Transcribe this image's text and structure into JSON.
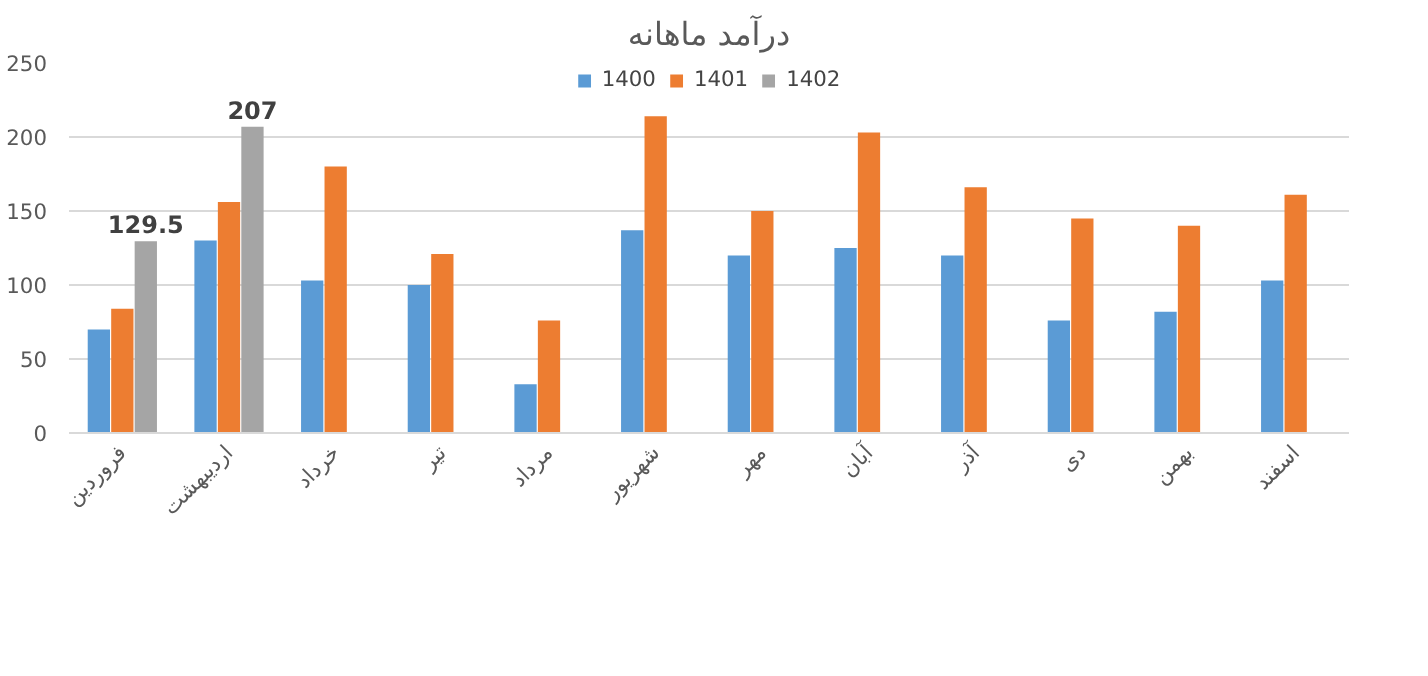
{
  "chart_data": {
    "type": "bar",
    "title": "درآمد ماهانه",
    "categories": [
      "فروردین",
      "اردیبهشت",
      "خرداد",
      "تیر",
      "مرداد",
      "شهریور",
      "مهر",
      "آبان",
      "آذر",
      "دی",
      "بهمن",
      "اسفند"
    ],
    "series": [
      {
        "name": "1400",
        "color": "#5b9bd5",
        "values": [
          70,
          130,
          103,
          100,
          33,
          137,
          120,
          125,
          120,
          76,
          82,
          103
        ]
      },
      {
        "name": "1401",
        "color": "#ed7d31",
        "values": [
          84,
          156,
          180,
          121,
          76,
          214,
          150,
          203,
          166,
          145,
          140,
          161
        ]
      },
      {
        "name": "1402",
        "color": "#a5a5a5",
        "values": [
          129.5,
          207,
          null,
          null,
          null,
          null,
          null,
          null,
          null,
          null,
          null,
          null
        ],
        "value_labels": [
          "129.5",
          "207",
          null,
          null,
          null,
          null,
          null,
          null,
          null,
          null,
          null,
          null
        ]
      }
    ],
    "ylim": [
      0,
      250
    ],
    "yticks": [
      0,
      50,
      100,
      150,
      200,
      250
    ],
    "grid": "y",
    "legend": "top"
  }
}
